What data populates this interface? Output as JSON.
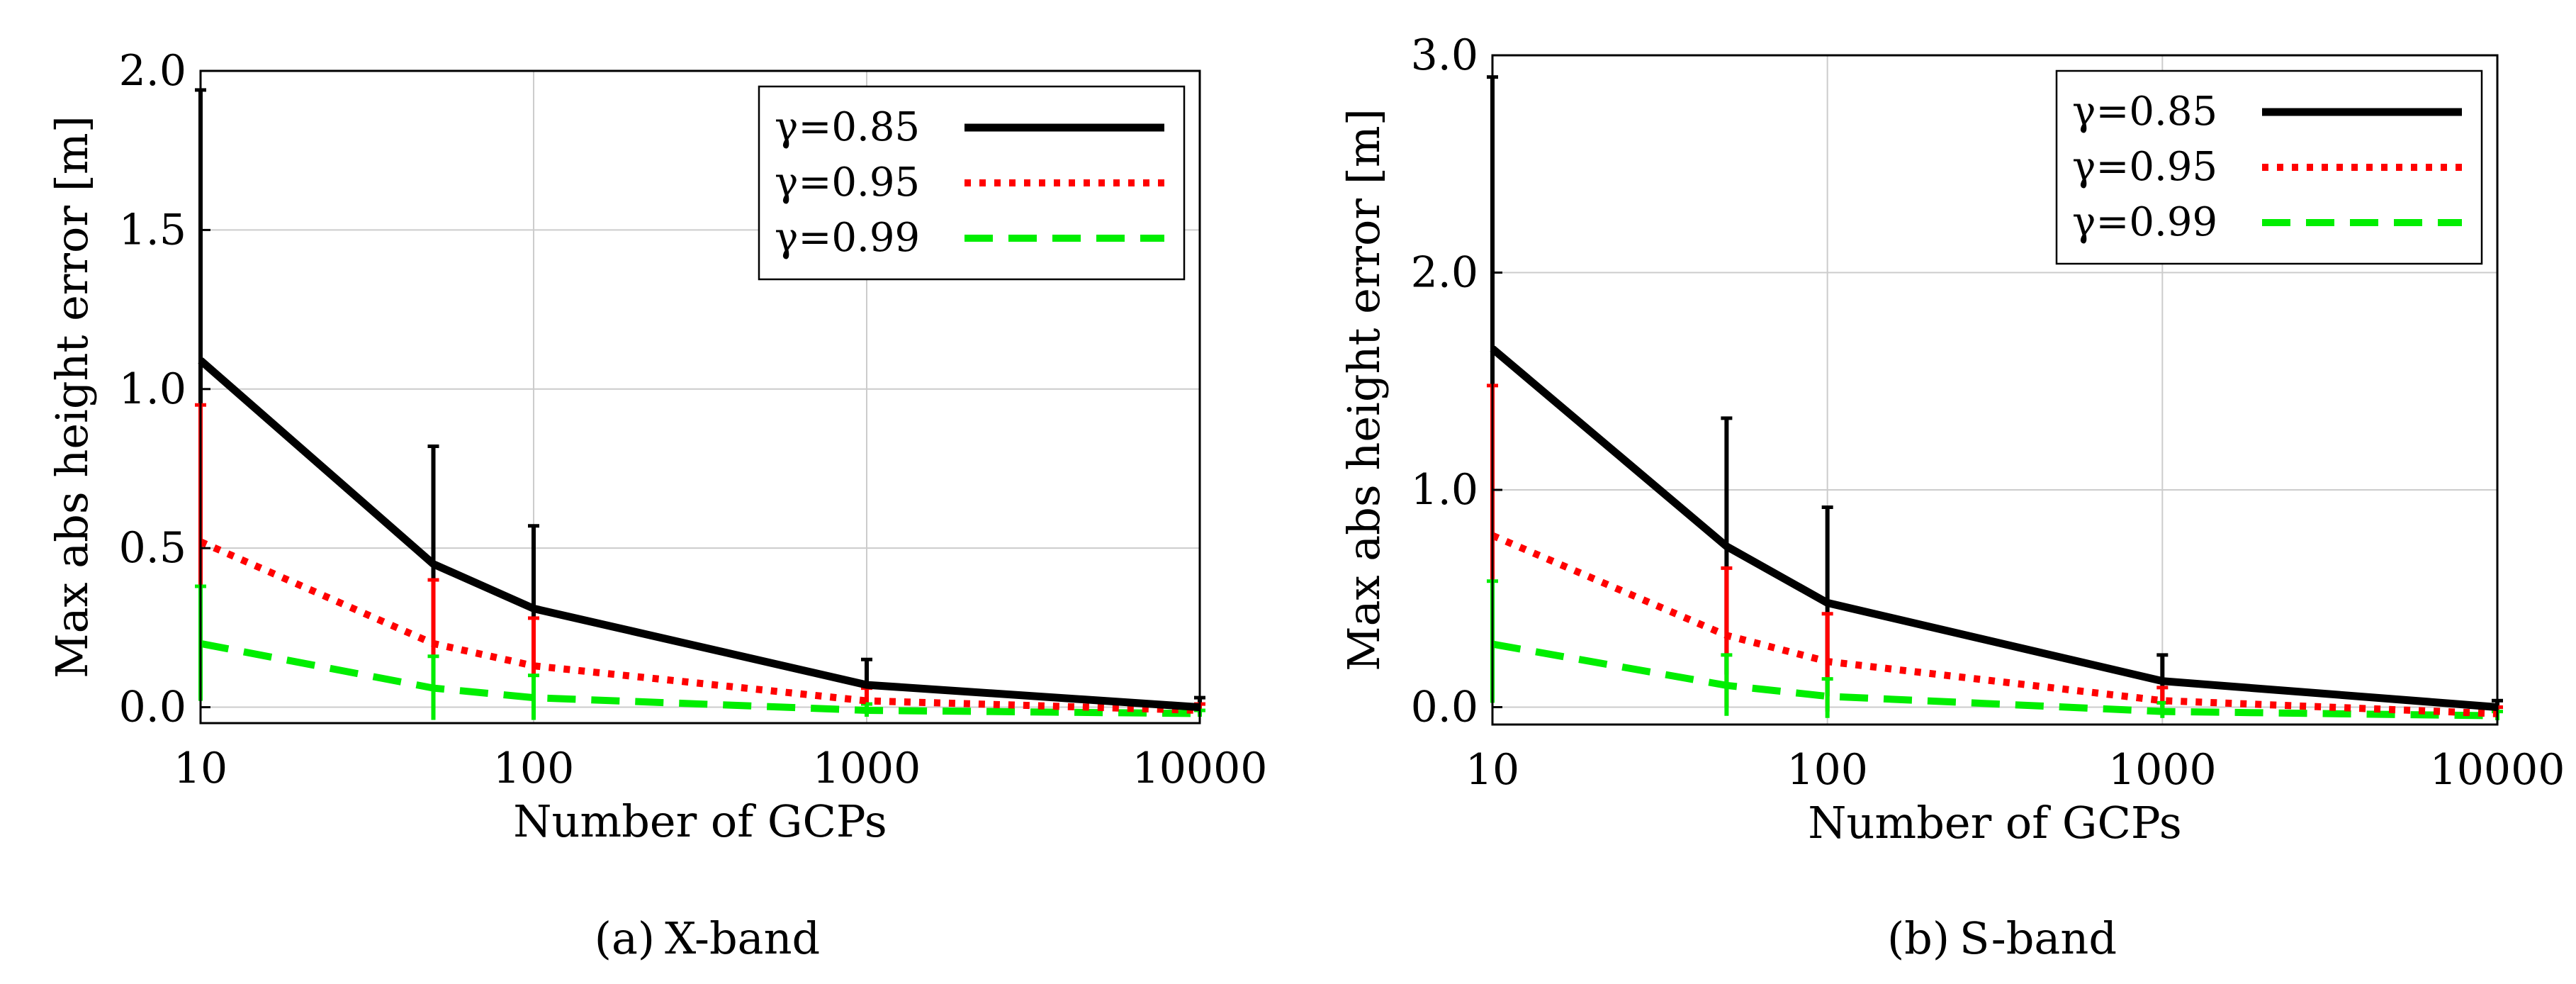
{
  "chart_data": [
    {
      "type": "line",
      "panel_id": "a",
      "caption_id": "(a)",
      "caption_text": "X-band",
      "xlabel": "Number of GCPs",
      "ylabel": "Max abs height error [m]",
      "xscale": "log",
      "xlim": [
        10,
        10000
      ],
      "ylim": [
        -0.05,
        2.0
      ],
      "xticks": [
        10,
        100,
        1000,
        10000
      ],
      "xtick_labels": [
        "10",
        "100",
        "1000",
        "10000"
      ],
      "yticks": [
        0.0,
        0.5,
        1.0,
        1.5,
        2.0
      ],
      "ytick_labels": [
        "0.0",
        "0.5",
        "1.0",
        "1.5",
        "2.0"
      ],
      "grid": true,
      "legend_position": "top-right",
      "x": [
        10,
        50,
        100,
        1000,
        10000
      ],
      "series": [
        {
          "name": "γ=0.85",
          "style": "solid",
          "color": "#000000",
          "values": [
            1.09,
            0.45,
            0.31,
            0.07,
            0.0
          ],
          "err_upper": [
            1.94,
            0.82,
            0.57,
            0.15,
            0.03
          ],
          "err_lower": [
            0.24,
            0.08,
            0.05,
            0.0,
            0.0
          ]
        },
        {
          "name": "γ=0.95",
          "style": "dotted",
          "color": "#ff0000",
          "values": [
            0.52,
            0.2,
            0.13,
            0.02,
            -0.01
          ],
          "err_upper": [
            0.95,
            0.4,
            0.28,
            0.06,
            0.01
          ],
          "err_lower": [
            0.1,
            -0.01,
            0.0,
            -0.02,
            -0.02
          ]
        },
        {
          "name": "γ=0.99",
          "style": "dashed",
          "color": "#00ee00",
          "values": [
            0.2,
            0.06,
            0.03,
            -0.01,
            -0.02
          ],
          "err_upper": [
            0.38,
            0.16,
            0.1,
            0.01,
            -0.01
          ],
          "err_lower": [
            0.02,
            -0.04,
            -0.04,
            -0.03,
            -0.03
          ]
        }
      ]
    },
    {
      "type": "line",
      "panel_id": "b",
      "caption_id": "(b)",
      "caption_text": "S-band",
      "xlabel": "Number of GCPs",
      "ylabel": "Max abs height error [m]",
      "xscale": "log",
      "xlim": [
        10,
        10000
      ],
      "ylim": [
        -0.08,
        3.0
      ],
      "xticks": [
        10,
        100,
        1000,
        10000
      ],
      "xtick_labels": [
        "10",
        "100",
        "1000",
        "10000"
      ],
      "yticks": [
        0.0,
        1.0,
        2.0,
        3.0
      ],
      "ytick_labels": [
        "0.0",
        "1.0",
        "2.0",
        "3.0"
      ],
      "grid": true,
      "legend_position": "top-right",
      "x": [
        10,
        50,
        100,
        1000,
        10000
      ],
      "series": [
        {
          "name": "γ=0.85",
          "style": "solid",
          "color": "#000000",
          "values": [
            1.65,
            0.74,
            0.48,
            0.12,
            0.0
          ],
          "err_upper": [
            2.9,
            1.33,
            0.92,
            0.24,
            0.03
          ],
          "err_lower": [
            0.35,
            0.15,
            0.05,
            0.0,
            -0.01
          ]
        },
        {
          "name": "γ=0.95",
          "style": "dotted",
          "color": "#ff0000",
          "values": [
            0.79,
            0.33,
            0.21,
            0.03,
            -0.03
          ],
          "err_upper": [
            1.48,
            0.64,
            0.43,
            0.09,
            0.0
          ],
          "err_lower": [
            0.1,
            0.0,
            -0.02,
            -0.02,
            -0.04
          ]
        },
        {
          "name": "γ=0.99",
          "style": "dashed",
          "color": "#00ee00",
          "values": [
            0.29,
            0.1,
            0.05,
            -0.02,
            -0.04
          ],
          "err_upper": [
            0.58,
            0.24,
            0.13,
            0.02,
            -0.02
          ],
          "err_lower": [
            0.02,
            -0.04,
            -0.05,
            -0.05,
            -0.06
          ]
        }
      ]
    }
  ]
}
